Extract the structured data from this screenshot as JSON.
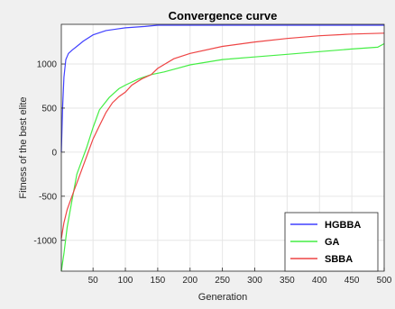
{
  "chart_data": {
    "type": "line",
    "title": "Convergence curve",
    "xlabel": "Generation",
    "ylabel": "Fitness of the best elite",
    "xlim": [
      1,
      500
    ],
    "ylim": [
      -1350,
      1450
    ],
    "xticks": [
      50,
      100,
      150,
      200,
      250,
      300,
      350,
      400,
      450,
      500
    ],
    "yticks": [
      -1000,
      -500,
      0,
      500,
      1000
    ],
    "grid": true,
    "legend_position": "bottom-right",
    "series": [
      {
        "name": "HGBBA",
        "color": "#4040ff",
        "x": [
          1,
          3,
          5,
          8,
          12,
          18,
          25,
          35,
          50,
          70,
          100,
          130,
          150,
          200,
          300,
          400,
          500
        ],
        "y": [
          0,
          500,
          850,
          1050,
          1120,
          1160,
          1200,
          1260,
          1330,
          1380,
          1410,
          1425,
          1440,
          1440,
          1440,
          1440,
          1440
        ]
      },
      {
        "name": "GA",
        "color": "#44ee44",
        "x": [
          1,
          5,
          10,
          15,
          20,
          25,
          30,
          40,
          50,
          60,
          75,
          90,
          100,
          120,
          140,
          160,
          180,
          200,
          250,
          300,
          350,
          400,
          450,
          490,
          500
        ],
        "y": [
          -1350,
          -1150,
          -850,
          -650,
          -450,
          -250,
          -150,
          50,
          280,
          480,
          620,
          720,
          760,
          830,
          880,
          910,
          950,
          990,
          1050,
          1080,
          1110,
          1140,
          1170,
          1190,
          1230
        ]
      },
      {
        "name": "SBBA",
        "color": "#ee4444",
        "x": [
          1,
          5,
          10,
          20,
          30,
          40,
          50,
          60,
          70,
          80,
          90,
          100,
          110,
          125,
          140,
          150,
          175,
          200,
          250,
          300,
          350,
          400,
          450,
          500
        ],
        "y": [
          -980,
          -800,
          -650,
          -450,
          -250,
          -50,
          150,
          300,
          450,
          560,
          630,
          680,
          760,
          830,
          880,
          950,
          1060,
          1120,
          1200,
          1250,
          1290,
          1320,
          1340,
          1350
        ]
      }
    ]
  }
}
